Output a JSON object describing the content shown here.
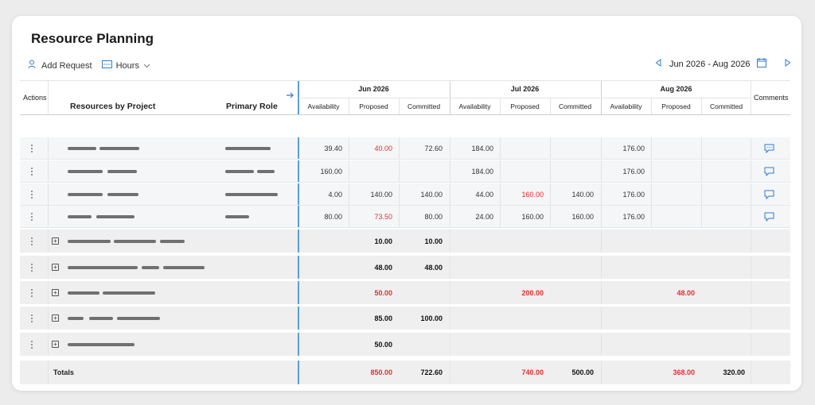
{
  "page": {
    "title": "Resource Planning"
  },
  "toolbar": {
    "add_request": "Add Request",
    "hours": "Hours",
    "date_range": "Jun 2026 - Aug 2026",
    "accent": "#2f7bd0"
  },
  "header": {
    "actions": "Actions",
    "resources_by_project": "Resources by Project",
    "primary_role": "Primary Role",
    "comments": "Comments",
    "months": [
      "Jun 2026",
      "Jul 2026",
      "Aug 2026"
    ],
    "subcols": [
      "Availability",
      "Proposed",
      "Committed"
    ]
  },
  "resource_rows": [
    {
      "values": [
        "39.40",
        "40.00",
        "72.60",
        "184.00",
        "",
        "",
        "176.00",
        "",
        ""
      ],
      "red": [
        1
      ],
      "comment_filled": true
    },
    {
      "values": [
        "160.00",
        "",
        "",
        "184.00",
        "",
        "",
        "176.00",
        "",
        ""
      ],
      "red": [],
      "comment_filled": false
    },
    {
      "values": [
        "4.00",
        "140.00",
        "140.00",
        "44.00",
        "160.00",
        "140.00",
        "176.00",
        "",
        ""
      ],
      "red": [
        4
      ],
      "comment_filled": false
    },
    {
      "values": [
        "80.00",
        "73.50",
        "80.00",
        "24.00",
        "160.00",
        "160.00",
        "176.00",
        "",
        ""
      ],
      "red": [
        1
      ],
      "comment_filled": false
    }
  ],
  "project_rows": [
    {
      "values": [
        "",
        "10.00",
        "10.00",
        "",
        "",
        "",
        "",
        "",
        ""
      ],
      "red": []
    },
    {
      "values": [
        "",
        "48.00",
        "48.00",
        "",
        "",
        "",
        "",
        "",
        ""
      ],
      "red": []
    },
    {
      "values": [
        "",
        "50.00",
        "",
        "",
        "200.00",
        "",
        "",
        "48.00",
        ""
      ],
      "red": [
        1,
        4,
        7
      ]
    },
    {
      "values": [
        "",
        "85.00",
        "100.00",
        "",
        "",
        "",
        "",
        "",
        ""
      ],
      "red": []
    },
    {
      "values": [
        "",
        "50.00",
        "",
        "",
        "",
        "",
        "",
        "",
        ""
      ],
      "red": []
    }
  ],
  "totals": {
    "label": "Totals",
    "values": [
      "",
      "850.00",
      "722.60",
      "",
      "740.00",
      "500.00",
      "",
      "368.00",
      "320.00"
    ],
    "red": [
      1,
      4,
      7
    ]
  },
  "colors": {
    "red": "#e0302f",
    "divider_blue": "#5a9fd8"
  }
}
